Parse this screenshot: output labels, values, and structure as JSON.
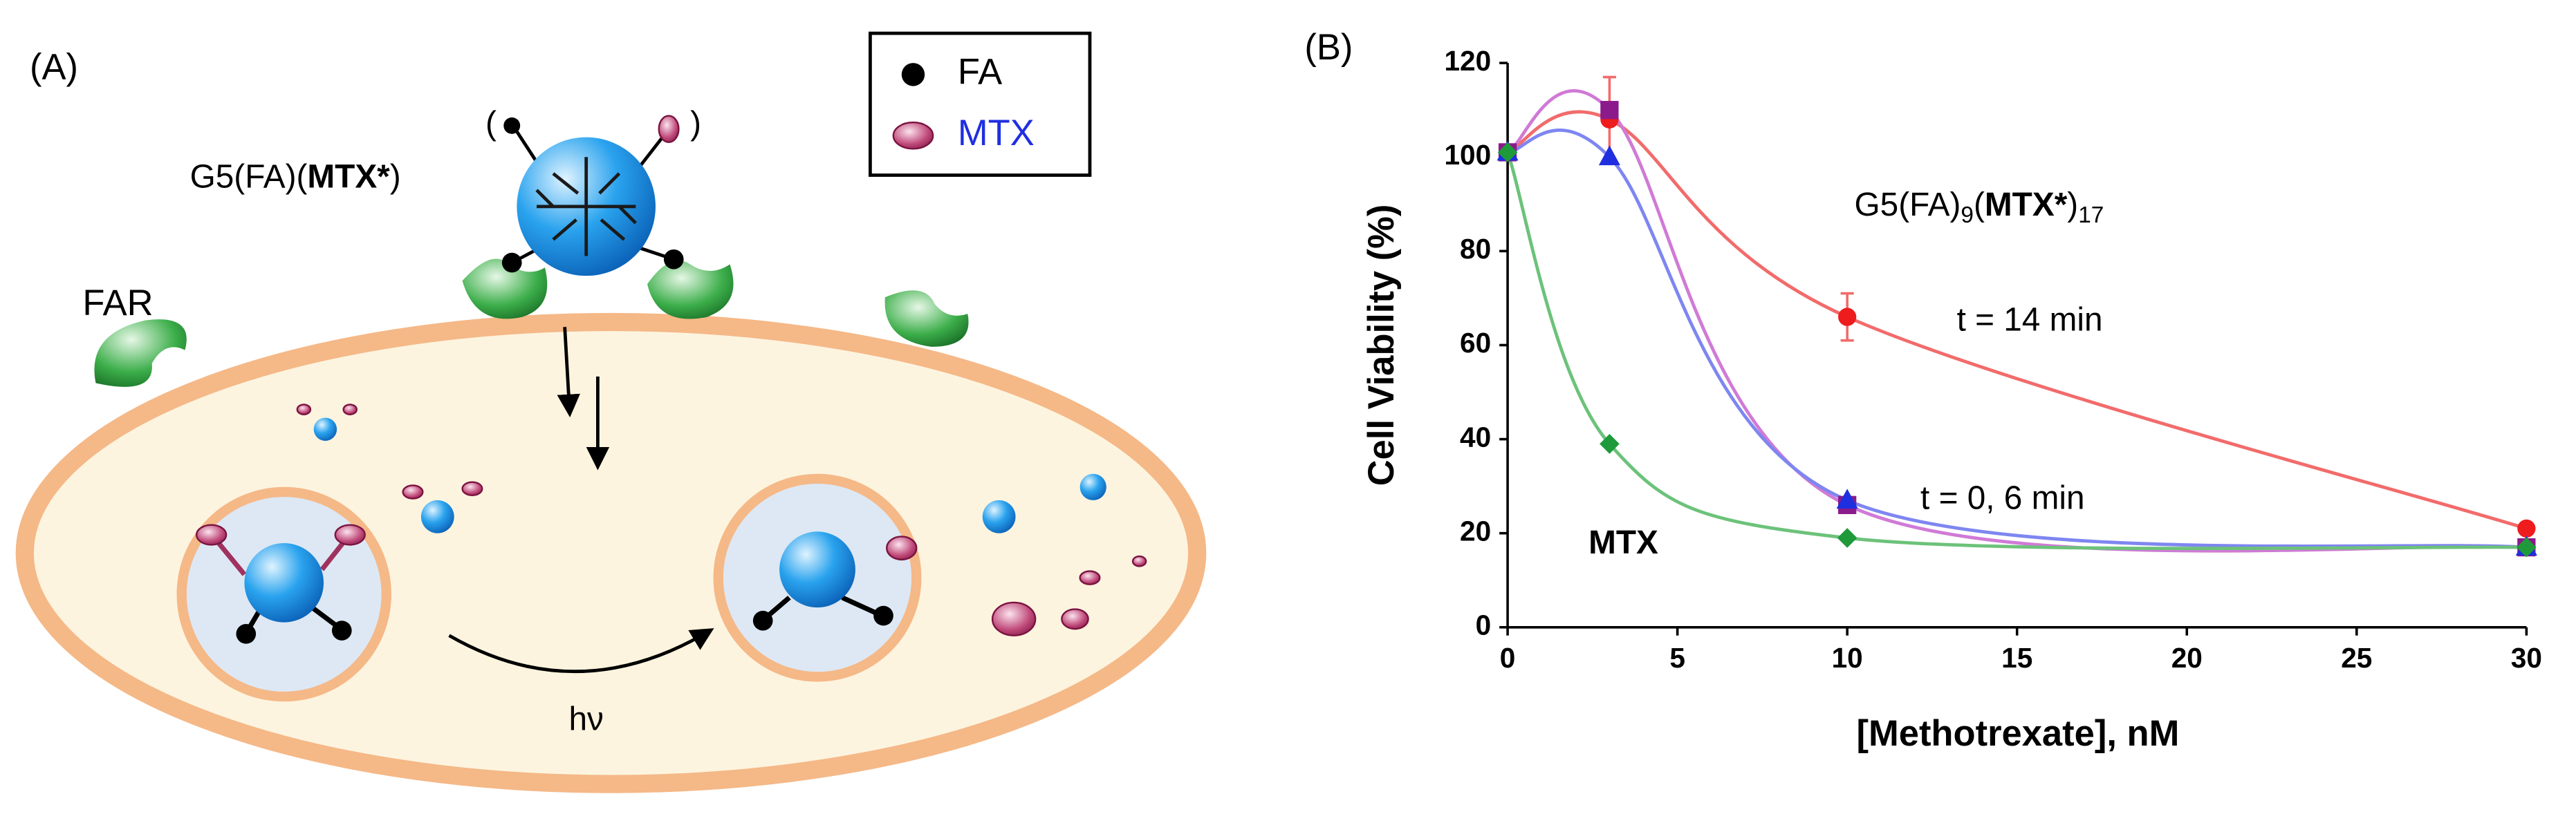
{
  "panel_a": {
    "label": "(A)",
    "legend": {
      "fa": "FA",
      "mtx": "MTX"
    },
    "conjugate": {
      "prefix": "G5(FA)(",
      "bold": "MTX*",
      "suffix": ")"
    },
    "linker_open": "(",
    "linker_close": ")",
    "receptor": "FAR",
    "light": "hν"
  },
  "chart_data": {
    "type": "scatter",
    "panel_label": "(B)",
    "xlabel": "[Methotrexate], nM",
    "ylabel": "Cell Viability (%)",
    "xlim": [
      0,
      30
    ],
    "xticks": [
      0,
      5,
      10,
      15,
      20,
      25,
      30
    ],
    "ylim": [
      0,
      120
    ],
    "yticks": [
      0,
      20,
      40,
      60,
      80,
      100,
      120
    ],
    "annotations": {
      "conjugate": [
        "G5(FA)",
        "9",
        "(",
        "MTX*",
        ")",
        "17"
      ],
      "t14": "t = 14 min",
      "t06": "t = 0, 6 min",
      "mtx": "MTX"
    },
    "series": [
      {
        "color": "#f26b6b",
        "marker_color": "#ee1c1c",
        "marker": "circle",
        "x": [
          0,
          3,
          10,
          30
        ],
        "values": [
          101,
          108,
          66,
          21
        ],
        "errors": [
          null,
          9,
          5,
          null
        ]
      },
      {
        "color": "#d07ad6",
        "marker_color": "#8b1a8b",
        "marker": "square",
        "x": [
          0,
          3,
          10,
          30
        ],
        "values": [
          101,
          110,
          26,
          17
        ],
        "errors": [
          null,
          null,
          null,
          null
        ]
      },
      {
        "color": "#7e86f0",
        "marker_color": "#1f2fe0",
        "marker": "triangle",
        "x": [
          0,
          3,
          10,
          30
        ],
        "values": [
          101,
          100,
          27,
          17
        ],
        "errors": [
          null,
          null,
          null,
          null
        ]
      },
      {
        "color": "#6cc27a",
        "marker_color": "#1f9a3a",
        "marker": "diamond",
        "x": [
          0,
          3,
          10,
          30
        ],
        "values": [
          101,
          39,
          19,
          17
        ],
        "errors": [
          null,
          null,
          null,
          null
        ]
      }
    ]
  }
}
